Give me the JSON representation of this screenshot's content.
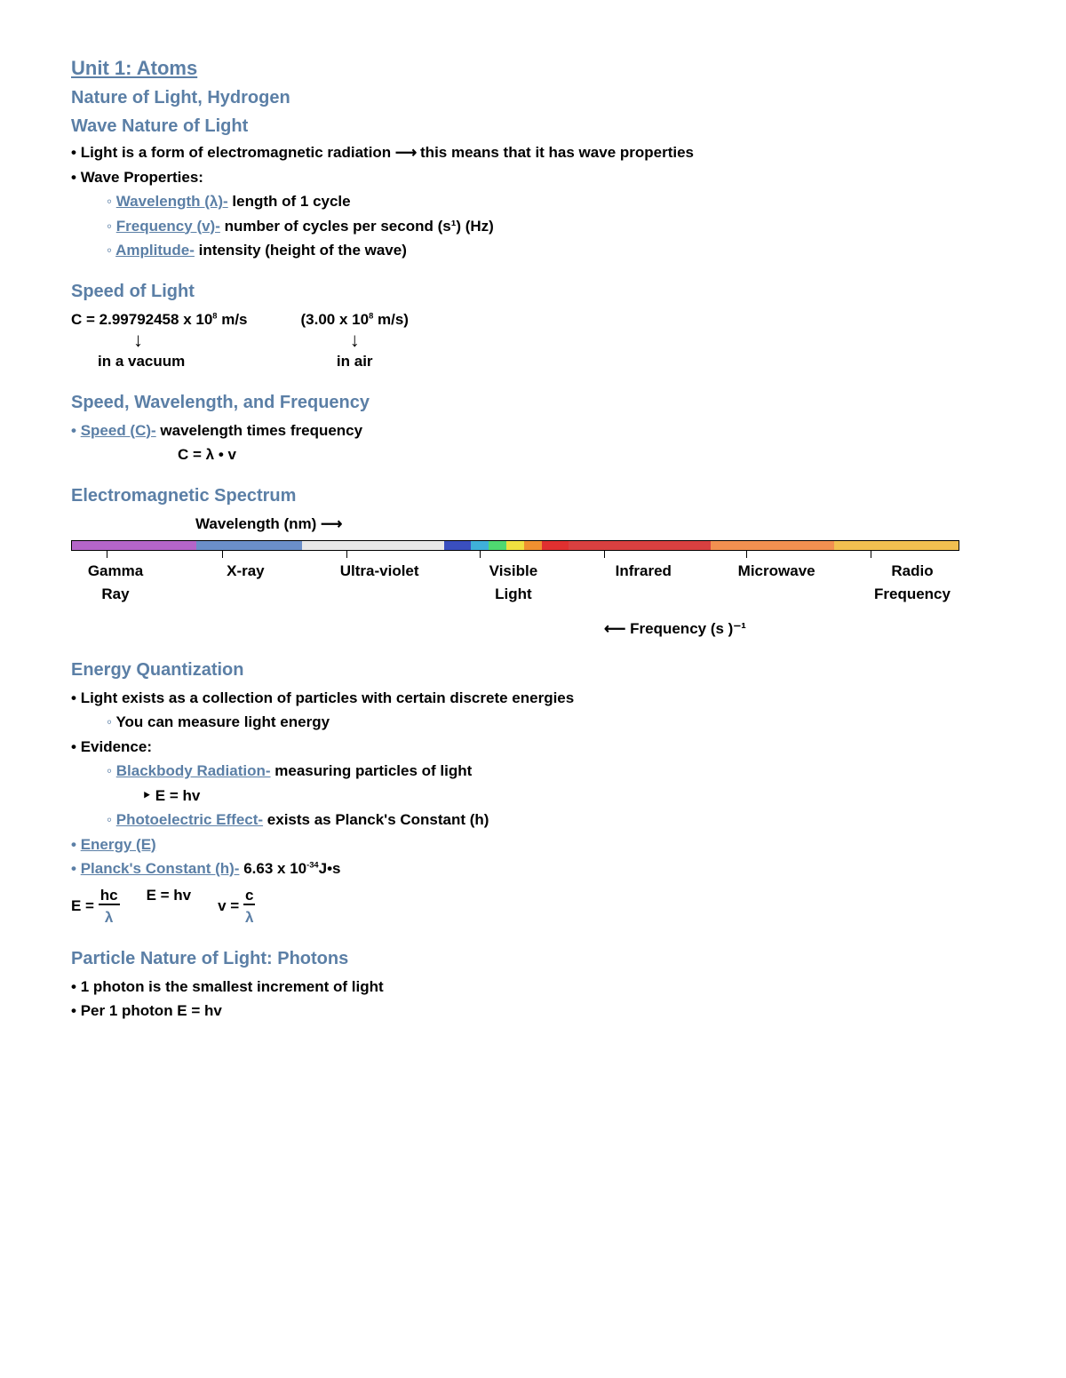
{
  "title": "Unit 1: Atoms",
  "subtitle1": "Nature of Light, Hydrogen",
  "subtitle2": "Wave Nature of Light",
  "wave_nature": {
    "line1_pre": "Light is a form of electromagnetic radiation ",
    "line1_arrow": "⟶",
    "line1_post": " this means that it has wave properties",
    "props_label": "Wave Properties:",
    "wavelength_term": "Wavelength (λ)-",
    "wavelength_def": " length of 1 cycle",
    "frequency_term": "Frequency (v)-",
    "frequency_def": " number of cycles per second (s¹) (Hz)",
    "amplitude_term": "Amplitude-",
    "amplitude_def": " intensity (height of the wave)"
  },
  "speed_of_light": {
    "heading": "Speed of Light",
    "vacuum_val_pre": "C = 2.99792458 x 10",
    "vacuum_exp": "8",
    "vacuum_unit": " m/s",
    "air_val_pre": "(3.00 x 10",
    "air_exp": "8",
    "air_unit": " m/s)",
    "vacuum_label": "in a vacuum",
    "air_label": "in air"
  },
  "swf": {
    "heading": "Speed, Wavelength, and Frequency",
    "term": "Speed (C)-",
    "def": " wavelength times frequency",
    "formula": "C = λ • v"
  },
  "spectrum": {
    "heading": "Electromagnetic Spectrum",
    "wavelength_label": "Wavelength (nm) ⟶",
    "segments": [
      {
        "width": 14,
        "color": "#b565c9"
      },
      {
        "width": 12,
        "color": "#6b8fc9"
      },
      {
        "width": 16,
        "color": "#e8e8e8"
      },
      {
        "width": 3,
        "color": "#3a4fbf"
      },
      {
        "width": 2,
        "color": "#3fb0d9"
      },
      {
        "width": 2,
        "color": "#4fd970"
      },
      {
        "width": 2,
        "color": "#f0e040"
      },
      {
        "width": 2,
        "color": "#f09030"
      },
      {
        "width": 3,
        "color": "#e03030"
      },
      {
        "width": 16,
        "color": "#d94040"
      },
      {
        "width": 14,
        "color": "#f29050"
      },
      {
        "width": 14,
        "color": "#f2c050"
      }
    ],
    "tick_positions": [
      4,
      17,
      31,
      46,
      60,
      76,
      90
    ],
    "labels": [
      {
        "l1": "Gamma",
        "l2": "Ray"
      },
      {
        "l1": "X-ray",
        "l2": ""
      },
      {
        "l1": "Ultra-violet",
        "l2": ""
      },
      {
        "l1": "Visible",
        "l2": "Light"
      },
      {
        "l1": "Infrared",
        "l2": ""
      },
      {
        "l1": "Microwave",
        "l2": ""
      },
      {
        "l1": "Radio",
        "l2": "Frequency"
      }
    ],
    "freq_label": "⟵ Frequency (s )⁻¹"
  },
  "energy_q": {
    "heading": "Energy Quantization",
    "line1": "Light exists as a collection of particles with certain discrete energies",
    "sub1": "You can measure light energy",
    "evidence": "Evidence:",
    "blackbody_term": "Blackbody Radiation-",
    "blackbody_def": " measuring particles of light",
    "e_hv": "E = hv",
    "photo_term": "Photoelectric Effect-",
    "photo_def": " exists as Planck's Constant (h)",
    "energy_term": "Energy (E)",
    "planck_term": "Planck's Constant (h)-",
    "planck_val_pre": " 6.63 x 10",
    "planck_exp": "-34",
    "planck_unit": "J•s",
    "f1_pre": "E = ",
    "f1_num": "hc",
    "f1_den": "λ",
    "f2": "E = hv",
    "f3_pre": "v = ",
    "f3_num": "c",
    "f3_den": "λ"
  },
  "photons": {
    "heading": "Particle Nature of Light: Photons",
    "line1": "1 photon is the smallest increment of light",
    "line2": "Per 1 photon    E = hv"
  }
}
